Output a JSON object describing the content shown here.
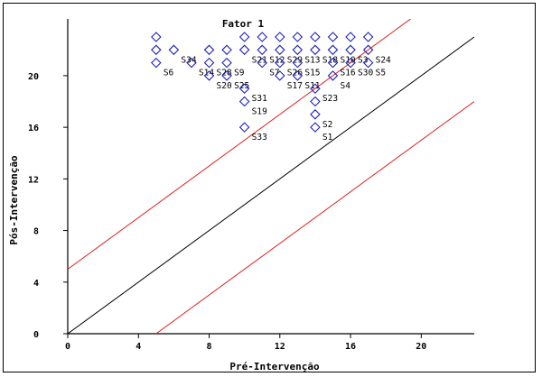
{
  "chart_data": {
    "type": "scatter",
    "title": "Fator 1",
    "xlabel": "Pré-Intervenção",
    "ylabel": "Pós-Intervenção",
    "xlim": [
      0,
      23
    ],
    "ylim": [
      0,
      23
    ],
    "x_ticks": [
      "0",
      "4",
      "8",
      "12",
      "16",
      "20"
    ],
    "y_ticks": [
      "0",
      "4",
      "8",
      "12",
      "16",
      "20"
    ],
    "x_tick_values": [
      0,
      4,
      8,
      12,
      16,
      20
    ],
    "y_tick_values": [
      0,
      4,
      8,
      12,
      16,
      20
    ],
    "grid": false,
    "marker": "diamond",
    "marker_color": "#2222bb",
    "reference_lines": [
      {
        "slope": 1,
        "intercept": 0,
        "color": "#000000"
      },
      {
        "slope": 1,
        "intercept": 5,
        "color": "#dd2222"
      },
      {
        "slope": 1,
        "intercept": -5,
        "color": "#dd2222"
      }
    ],
    "points": [
      {
        "x": 5,
        "y": 23,
        "label": ""
      },
      {
        "x": 10,
        "y": 23,
        "label": ""
      },
      {
        "x": 11,
        "y": 23,
        "label": ""
      },
      {
        "x": 12,
        "y": 23,
        "label": ""
      },
      {
        "x": 13,
        "y": 23,
        "label": ""
      },
      {
        "x": 14,
        "y": 23,
        "label": ""
      },
      {
        "x": 15,
        "y": 23,
        "label": ""
      },
      {
        "x": 16,
        "y": 23,
        "label": ""
      },
      {
        "x": 17,
        "y": 23,
        "label": ""
      },
      {
        "x": 5,
        "y": 22,
        "label": ""
      },
      {
        "x": 6,
        "y": 22,
        "label": "S34"
      },
      {
        "x": 8,
        "y": 22,
        "label": ""
      },
      {
        "x": 9,
        "y": 22,
        "label": ""
      },
      {
        "x": 10,
        "y": 22,
        "label": "S21"
      },
      {
        "x": 11,
        "y": 22,
        "label": "S12"
      },
      {
        "x": 12,
        "y": 22,
        "label": "S29"
      },
      {
        "x": 13,
        "y": 22,
        "label": "S13"
      },
      {
        "x": 14,
        "y": 22,
        "label": "S18"
      },
      {
        "x": 15,
        "y": 22,
        "label": "S10"
      },
      {
        "x": 16,
        "y": 22,
        "label": "S3"
      },
      {
        "x": 17,
        "y": 22,
        "label": "S24"
      },
      {
        "x": 5,
        "y": 21,
        "label": "S6"
      },
      {
        "x": 7,
        "y": 21,
        "label": "S14"
      },
      {
        "x": 8,
        "y": 21,
        "label": "S28"
      },
      {
        "x": 9,
        "y": 21,
        "label": "S9"
      },
      {
        "x": 11,
        "y": 21,
        "label": "S7"
      },
      {
        "x": 12,
        "y": 21,
        "label": "S26"
      },
      {
        "x": 13,
        "y": 21,
        "label": "S15"
      },
      {
        "x": 15,
        "y": 21,
        "label": "S16"
      },
      {
        "x": 16,
        "y": 21,
        "label": "S30"
      },
      {
        "x": 17,
        "y": 21,
        "label": "S5"
      },
      {
        "x": 8,
        "y": 20,
        "label": "S20"
      },
      {
        "x": 9,
        "y": 20,
        "label": "S25"
      },
      {
        "x": 12,
        "y": 20,
        "label": "S17"
      },
      {
        "x": 13,
        "y": 20,
        "label": "S11"
      },
      {
        "x": 15,
        "y": 20,
        "label": "S4"
      },
      {
        "x": 10,
        "y": 19,
        "label": "S31"
      },
      {
        "x": 14,
        "y": 19,
        "label": "S23"
      },
      {
        "x": 10,
        "y": 18,
        "label": "S19"
      },
      {
        "x": 14,
        "y": 18,
        "label": ""
      },
      {
        "x": 14,
        "y": 17,
        "label": "S2"
      },
      {
        "x": 10,
        "y": 16,
        "label": "S33"
      },
      {
        "x": 14,
        "y": 16,
        "label": "S1"
      }
    ]
  }
}
